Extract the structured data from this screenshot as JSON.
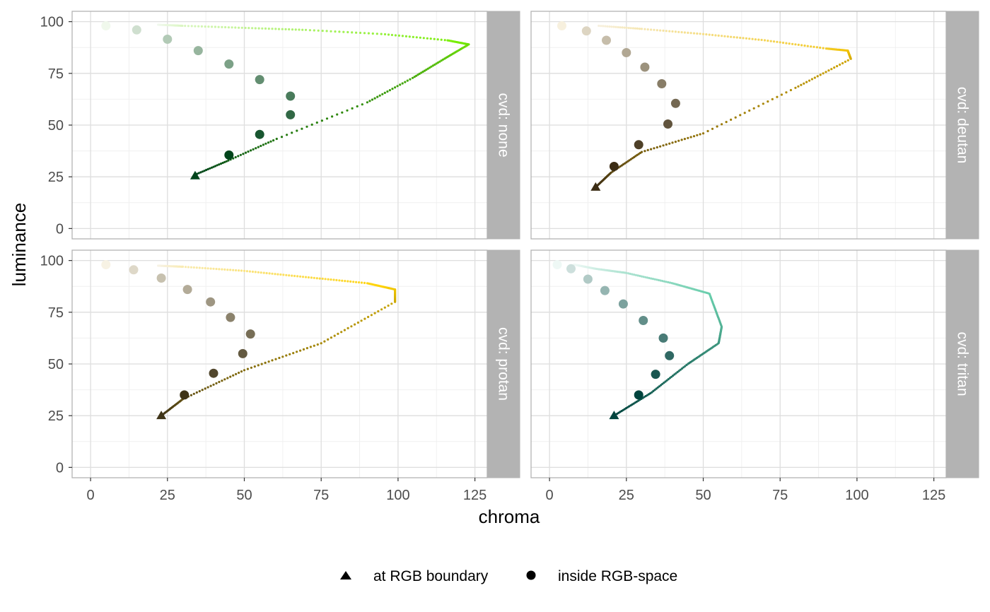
{
  "chart_data": {
    "type": "scatter",
    "xlabel": "chroma",
    "ylabel": "luminance",
    "xlim": [
      -6,
      129
    ],
    "ylim": [
      -5,
      105
    ],
    "x_ticks": [
      0,
      25,
      50,
      75,
      100,
      125
    ],
    "y_ticks": [
      0,
      25,
      50,
      75,
      100
    ],
    "grid": true,
    "legend_position": "bottom",
    "legend": [
      {
        "label": "at RGB boundary",
        "shape": "triangle"
      },
      {
        "label": "inside RGB-space",
        "shape": "circle"
      }
    ],
    "panels": [
      {
        "strip": "cvd: none",
        "dark_color": "#00441b",
        "light_color": "#f0f8ec",
        "vivid_color": "#76ee00",
        "boundary": [
          [
            34,
            26
          ],
          [
            45,
            33
          ],
          [
            60,
            43
          ],
          [
            90,
            61
          ],
          [
            105,
            73
          ],
          [
            115,
            82
          ],
          [
            123,
            89
          ],
          [
            116,
            91
          ],
          [
            95,
            94
          ],
          [
            70,
            96
          ],
          [
            50,
            97
          ],
          [
            30,
            98
          ],
          [
            22,
            98.5
          ]
        ],
        "inside": [
          [
            5,
            98
          ],
          [
            15,
            96
          ],
          [
            25,
            91.5
          ],
          [
            35,
            86
          ],
          [
            45,
            79.5
          ],
          [
            55,
            72
          ],
          [
            65,
            64
          ],
          [
            65,
            55
          ],
          [
            55,
            45.5
          ],
          [
            45,
            35.5
          ]
        ],
        "triangle": [
          34,
          25.5
        ]
      },
      {
        "strip": "cvd: deutan",
        "dark_color": "#3b2c14",
        "light_color": "#f7f0de",
        "vivid_color": "#f2c200",
        "boundary": [
          [
            15,
            20
          ],
          [
            20,
            27
          ],
          [
            30,
            37
          ],
          [
            50,
            46
          ],
          [
            80,
            68
          ],
          [
            98,
            82
          ],
          [
            97,
            86
          ],
          [
            90,
            87
          ],
          [
            70,
            91
          ],
          [
            50,
            94
          ],
          [
            30,
            96.5
          ],
          [
            16,
            98
          ]
        ],
        "inside": [
          [
            4,
            98
          ],
          [
            12,
            95.5
          ],
          [
            18.5,
            91
          ],
          [
            25,
            85
          ],
          [
            31,
            78
          ],
          [
            36.5,
            70
          ],
          [
            41,
            60.5
          ],
          [
            38.5,
            50.5
          ],
          [
            29,
            40.5
          ],
          [
            21,
            30
          ]
        ],
        "triangle": [
          15,
          20
        ]
      },
      {
        "strip": "cvd: protan",
        "dark_color": "#3f3418",
        "light_color": "#f7f2e4",
        "vivid_color": "#ffd200",
        "boundary": [
          [
            23,
            25
          ],
          [
            30,
            33
          ],
          [
            50,
            47
          ],
          [
            75,
            60
          ],
          [
            99,
            80
          ],
          [
            99,
            86
          ],
          [
            90,
            89
          ],
          [
            70,
            92
          ],
          [
            50,
            95
          ],
          [
            30,
            97
          ],
          [
            22,
            97.5
          ]
        ],
        "inside": [
          [
            5,
            98
          ],
          [
            14,
            95.5
          ],
          [
            23,
            91.5
          ],
          [
            31.5,
            86
          ],
          [
            39,
            80
          ],
          [
            45.5,
            72.5
          ],
          [
            52,
            64.5
          ],
          [
            49.5,
            55
          ],
          [
            40,
            45.5
          ],
          [
            30.5,
            35
          ]
        ],
        "triangle": [
          23,
          25
        ]
      },
      {
        "strip": "cvd: tritan",
        "dark_color": "#00443e",
        "light_color": "#eef8f5",
        "vivid_color": "#66ccaa",
        "boundary": [
          [
            21,
            25
          ],
          [
            33,
            36
          ],
          [
            45,
            50
          ],
          [
            55,
            60
          ],
          [
            56,
            68
          ],
          [
            52,
            84
          ],
          [
            40,
            89
          ],
          [
            25,
            94
          ],
          [
            15,
            96
          ],
          [
            8,
            98
          ]
        ],
        "inside": [
          [
            2.5,
            98
          ],
          [
            7,
            96
          ],
          [
            12.5,
            91
          ],
          [
            18,
            85.5
          ],
          [
            24,
            79
          ],
          [
            30.5,
            71
          ],
          [
            37,
            62.5
          ],
          [
            39,
            54
          ],
          [
            34.5,
            45
          ],
          [
            29,
            35
          ]
        ],
        "triangle": [
          21,
          25
        ]
      }
    ]
  }
}
